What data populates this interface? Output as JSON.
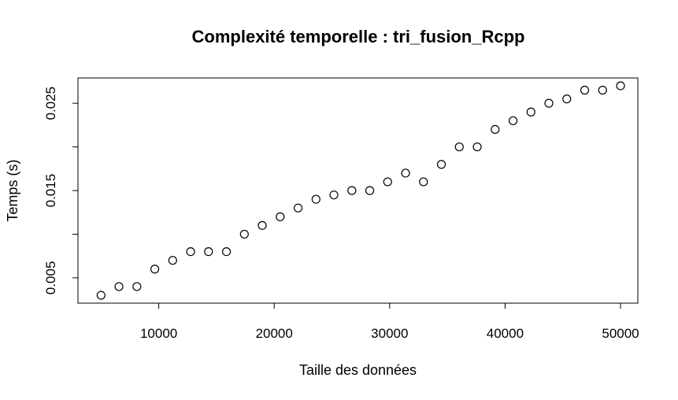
{
  "chart_data": {
    "type": "scatter",
    "title": "Complexité temporelle : tri_fusion_Rcpp",
    "xlabel": "Taille des données",
    "ylabel": "Temps (s)",
    "xlim": [
      3000,
      51500
    ],
    "ylim": [
      0.0021,
      0.0279
    ],
    "x_ticks": [
      10000,
      20000,
      30000,
      40000,
      50000
    ],
    "x_tick_labels": [
      "10000",
      "20000",
      "30000",
      "40000",
      "50000"
    ],
    "y_ticks": [
      0.005,
      0.01,
      0.015,
      0.02,
      0.025
    ],
    "y_tick_labels": [
      "0.005",
      "",
      "0.015",
      "",
      "0.025"
    ],
    "marker": "open-circle",
    "grid": false,
    "points": [
      {
        "x": 5000,
        "y": 0.003
      },
      {
        "x": 6552,
        "y": 0.004
      },
      {
        "x": 8103,
        "y": 0.004
      },
      {
        "x": 9655,
        "y": 0.006
      },
      {
        "x": 11207,
        "y": 0.007
      },
      {
        "x": 12759,
        "y": 0.008
      },
      {
        "x": 14310,
        "y": 0.008
      },
      {
        "x": 15862,
        "y": 0.008
      },
      {
        "x": 17414,
        "y": 0.01
      },
      {
        "x": 18966,
        "y": 0.011
      },
      {
        "x": 20517,
        "y": 0.012
      },
      {
        "x": 22069,
        "y": 0.013
      },
      {
        "x": 23621,
        "y": 0.014
      },
      {
        "x": 25172,
        "y": 0.0145
      },
      {
        "x": 26724,
        "y": 0.015
      },
      {
        "x": 28276,
        "y": 0.015
      },
      {
        "x": 29828,
        "y": 0.016
      },
      {
        "x": 31379,
        "y": 0.017
      },
      {
        "x": 32931,
        "y": 0.016
      },
      {
        "x": 34483,
        "y": 0.018
      },
      {
        "x": 36034,
        "y": 0.02
      },
      {
        "x": 37586,
        "y": 0.02
      },
      {
        "x": 39138,
        "y": 0.022
      },
      {
        "x": 40690,
        "y": 0.023
      },
      {
        "x": 42241,
        "y": 0.024
      },
      {
        "x": 43793,
        "y": 0.025
      },
      {
        "x": 45345,
        "y": 0.0255
      },
      {
        "x": 46897,
        "y": 0.0265
      },
      {
        "x": 48448,
        "y": 0.0265
      },
      {
        "x": 50000,
        "y": 0.027
      }
    ]
  }
}
